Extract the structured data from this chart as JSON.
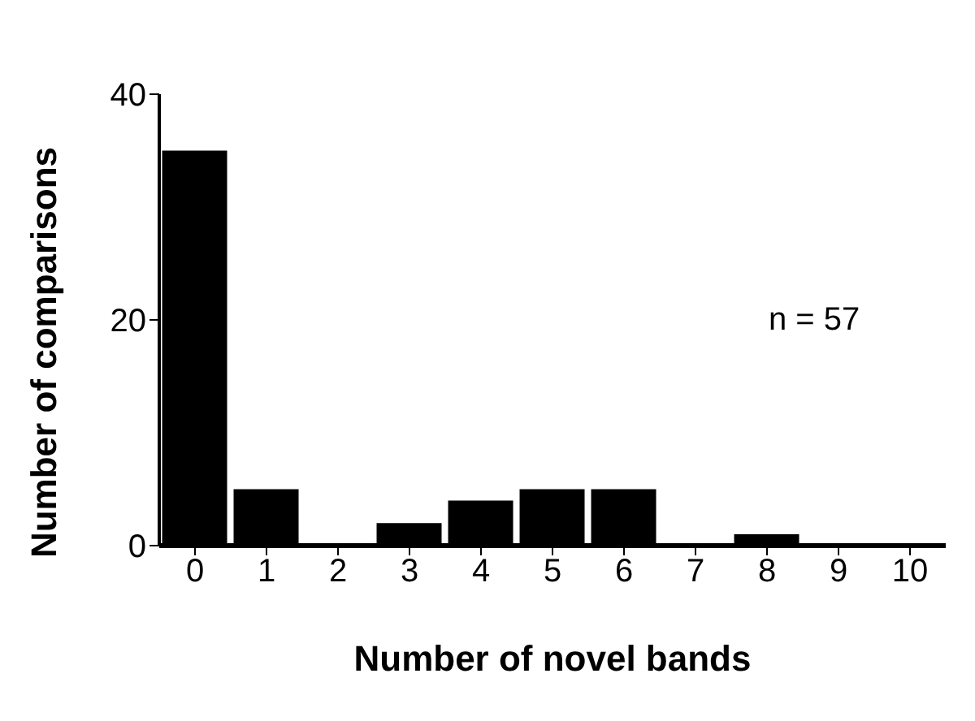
{
  "chart_data": {
    "type": "bar",
    "xlabel": "Number of novel bands",
    "ylabel": "Number of comparisons",
    "categories": [
      "0",
      "1",
      "2",
      "3",
      "4",
      "5",
      "6",
      "7",
      "8",
      "9",
      "10"
    ],
    "values": [
      35,
      5,
      0,
      2,
      4,
      5,
      5,
      0,
      1,
      0,
      0
    ],
    "color": "#000000",
    "ylim": [
      0,
      40
    ],
    "yticks": [
      0,
      20,
      40
    ],
    "grid": false,
    "annotations": [
      "n = 57"
    ]
  }
}
